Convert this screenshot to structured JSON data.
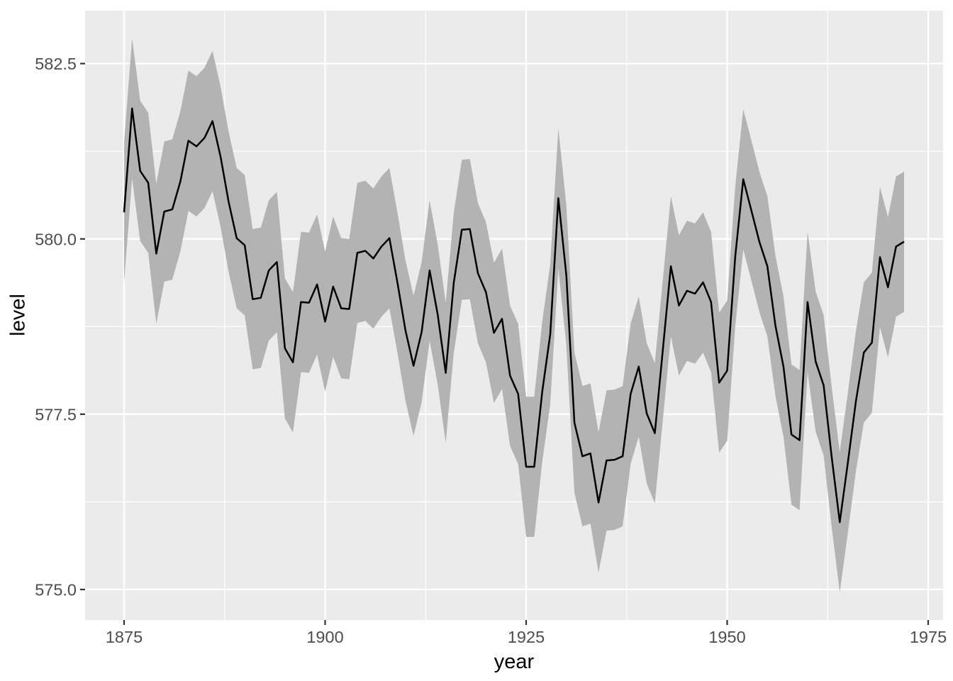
{
  "chart_data": {
    "type": "line",
    "xlabel": "year",
    "ylabel": "level",
    "x": [
      1875,
      1876,
      1877,
      1878,
      1879,
      1880,
      1881,
      1882,
      1883,
      1884,
      1885,
      1886,
      1887,
      1888,
      1889,
      1890,
      1891,
      1892,
      1893,
      1894,
      1895,
      1896,
      1897,
      1898,
      1899,
      1900,
      1901,
      1902,
      1903,
      1904,
      1905,
      1906,
      1907,
      1908,
      1909,
      1910,
      1911,
      1912,
      1913,
      1914,
      1915,
      1916,
      1917,
      1918,
      1919,
      1920,
      1921,
      1922,
      1923,
      1924,
      1925,
      1926,
      1927,
      1928,
      1929,
      1930,
      1931,
      1932,
      1933,
      1934,
      1935,
      1936,
      1937,
      1938,
      1939,
      1940,
      1941,
      1942,
      1943,
      1944,
      1945,
      1946,
      1947,
      1948,
      1949,
      1950,
      1951,
      1952,
      1953,
      1954,
      1955,
      1956,
      1957,
      1958,
      1959,
      1960,
      1961,
      1962,
      1963,
      1964,
      1965,
      1966,
      1967,
      1968,
      1969,
      1970,
      1971,
      1972
    ],
    "series": [
      {
        "name": "level",
        "values": [
          580.38,
          581.86,
          580.97,
          580.8,
          579.79,
          580.39,
          580.42,
          580.82,
          581.4,
          581.32,
          581.44,
          581.68,
          581.17,
          580.53,
          580.01,
          579.91,
          579.14,
          579.16,
          579.55,
          579.67,
          578.44,
          578.24,
          579.1,
          579.09,
          579.35,
          578.82,
          579.32,
          579.01,
          579.0,
          579.8,
          579.83,
          579.72,
          579.89,
          580.01,
          579.37,
          578.69,
          578.19,
          578.67,
          579.55,
          578.92,
          578.09,
          579.37,
          580.13,
          580.14,
          579.51,
          579.24,
          578.66,
          578.86,
          578.05,
          577.79,
          576.75,
          576.75,
          577.82,
          578.64,
          580.58,
          579.48,
          577.38,
          576.9,
          576.94,
          576.24,
          576.84,
          576.85,
          576.9,
          577.79,
          578.18,
          577.51,
          577.23,
          578.42,
          579.61,
          579.05,
          579.26,
          579.22,
          579.38,
          579.1,
          577.95,
          578.12,
          579.75,
          580.85,
          580.41,
          579.96,
          579.61,
          578.76,
          578.18,
          577.21,
          577.13,
          579.1,
          578.25,
          577.91,
          576.89,
          575.96,
          576.8,
          577.68,
          578.38,
          578.52,
          579.74,
          579.31,
          579.89,
          579.96
        ]
      }
    ],
    "ribbon": {
      "description": "level - 1 to level + 1",
      "halfwidth": 1.0,
      "fill": "#B3B3B3"
    },
    "xlim": [
      1870.15,
      1976.85
    ],
    "ylim": [
      574.565,
      583.255
    ],
    "x_major_ticks": [
      1875,
      1900,
      1925,
      1950,
      1975
    ],
    "x_tick_labels": [
      "1875",
      "1900",
      "1925",
      "1950",
      "1975"
    ],
    "x_minor_ticks": [
      1887.5,
      1912.5,
      1937.5,
      1962.5
    ],
    "y_major_ticks": [
      575.0,
      577.5,
      580.0,
      582.5
    ],
    "y_tick_labels": [
      "575.0",
      "577.5",
      "580.0",
      "582.5"
    ],
    "y_minor_ticks": [
      576.25,
      578.75,
      581.25
    ],
    "grid": "major-and-minor",
    "legend": "none",
    "colors": {
      "page_background": "#FFFFFF",
      "panel_background": "#EBEBEB",
      "gridline": "#FFFFFF",
      "ribbon_fill": "#B3B3B3",
      "line": "#000000",
      "tick_mark": "#333333",
      "tick_text": "#4D4D4D",
      "axis_title": "#000000"
    }
  }
}
